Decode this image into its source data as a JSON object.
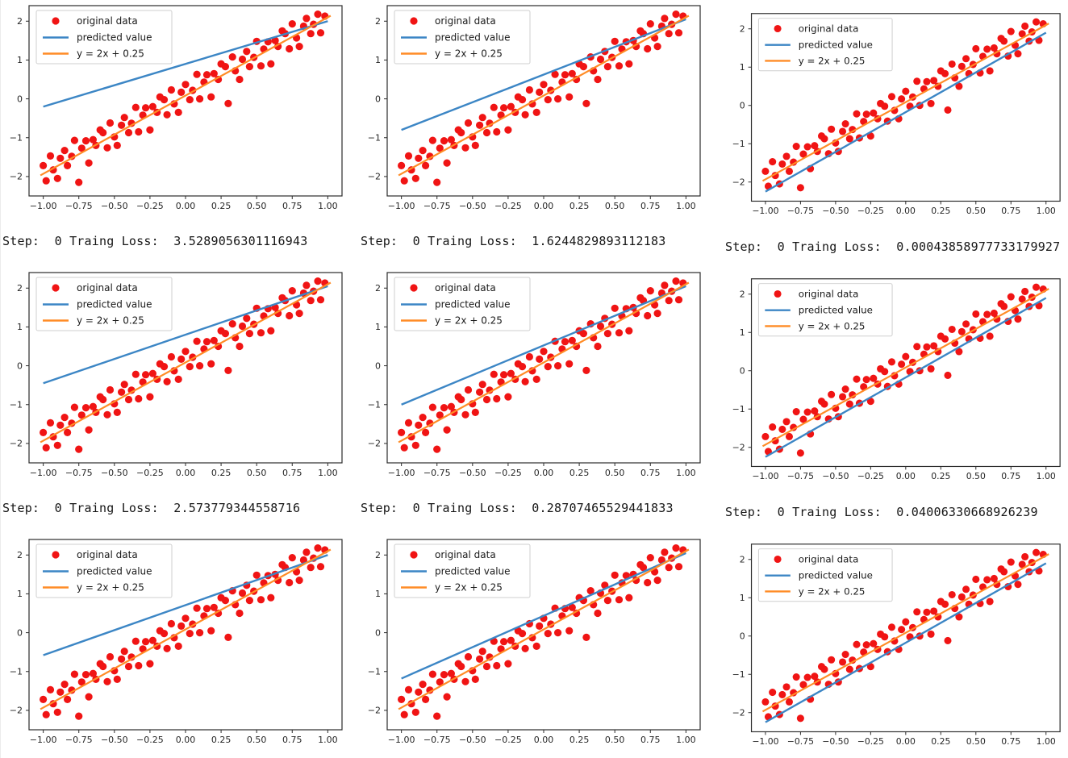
{
  "page": {
    "background": "#ffffff"
  },
  "caption_format": "Step:  {step} Traing Loss:  {loss}",
  "chart_data": {
    "type": "scatter",
    "grid": "3x3 subplots, identical data, different predicted lines",
    "xlim": [
      -1.1,
      1.1
    ],
    "ylim": [
      -2.5,
      2.4
    ],
    "x_ticks": [
      -1.0,
      -0.75,
      -0.5,
      -0.25,
      0.0,
      0.25,
      0.5,
      0.75,
      1.0
    ],
    "x_tick_labels": [
      "−1.00",
      "−0.75",
      "−0.50",
      "−0.25",
      "0.00",
      "0.25",
      "0.50",
      "0.75",
      "1.00"
    ],
    "y_ticks": [
      2,
      1,
      0,
      -1,
      -2
    ],
    "y_tick_labels": [
      "2",
      "1",
      "0",
      "−1",
      "−2"
    ],
    "legend": [
      {
        "label": "original data",
        "marker": "dot",
        "color": "#f01414"
      },
      {
        "label": "predicted value",
        "marker": "line",
        "color": "#3c86c5"
      },
      {
        "label": "y = 2x + 0.25",
        "marker": "line",
        "color": "#ff8c26"
      }
    ],
    "colors": {
      "scatter": "#f01414",
      "predicted": "#3c86c5",
      "true_line": "#ff8c26",
      "spine": "#2b2b2b",
      "tick_text": "#262626"
    },
    "true_line": {
      "slope": 2,
      "intercept": 0.25,
      "draw": [
        [
          -1.02,
          -1.97
        ],
        [
          1.02,
          2.14
        ]
      ]
    },
    "scatter": [
      [
        -1.0,
        -1.72
      ],
      [
        -0.98,
        -2.11
      ],
      [
        -0.95,
        -1.47
      ],
      [
        -0.93,
        -1.83
      ],
      [
        -0.9,
        -2.05
      ],
      [
        -0.88,
        -1.53
      ],
      [
        -0.85,
        -1.33
      ],
      [
        -0.83,
        -1.72
      ],
      [
        -0.8,
        -1.48
      ],
      [
        -0.78,
        -1.07
      ],
      [
        -0.75,
        -2.15
      ],
      [
        -0.73,
        -1.27
      ],
      [
        -0.7,
        -1.08
      ],
      [
        -0.68,
        -1.65
      ],
      [
        -0.65,
        -1.05
      ],
      [
        -0.63,
        -1.2
      ],
      [
        -0.6,
        -0.8
      ],
      [
        -0.58,
        -0.87
      ],
      [
        -0.55,
        -1.26
      ],
      [
        -0.53,
        -0.62
      ],
      [
        -0.5,
        -0.98
      ],
      [
        -0.48,
        -1.2
      ],
      [
        -0.45,
        -0.68
      ],
      [
        -0.43,
        -0.48
      ],
      [
        -0.4,
        -0.87
      ],
      [
        -0.38,
        -0.63
      ],
      [
        -0.35,
        -0.22
      ],
      [
        -0.33,
        -0.85
      ],
      [
        -0.3,
        -0.42
      ],
      [
        -0.28,
        -0.23
      ],
      [
        -0.25,
        -0.8
      ],
      [
        -0.23,
        -0.2
      ],
      [
        -0.2,
        -0.35
      ],
      [
        -0.18,
        0.05
      ],
      [
        -0.15,
        -0.02
      ],
      [
        -0.13,
        -0.41
      ],
      [
        -0.1,
        0.23
      ],
      [
        -0.08,
        -0.13
      ],
      [
        -0.05,
        -0.35
      ],
      [
        -0.03,
        0.17
      ],
      [
        0.0,
        0.37
      ],
      [
        0.03,
        -0.02
      ],
      [
        0.05,
        0.22
      ],
      [
        0.08,
        0.63
      ],
      [
        0.1,
        0.0
      ],
      [
        0.13,
        0.43
      ],
      [
        0.15,
        0.62
      ],
      [
        0.18,
        0.05
      ],
      [
        0.2,
        0.65
      ],
      [
        0.23,
        0.5
      ],
      [
        0.25,
        0.9
      ],
      [
        0.28,
        0.83
      ],
      [
        0.3,
        -0.12
      ],
      [
        0.33,
        1.08
      ],
      [
        0.35,
        0.72
      ],
      [
        0.38,
        0.5
      ],
      [
        0.4,
        1.02
      ],
      [
        0.43,
        1.22
      ],
      [
        0.45,
        0.83
      ],
      [
        0.48,
        1.07
      ],
      [
        0.5,
        1.48
      ],
      [
        0.53,
        0.85
      ],
      [
        0.55,
        1.28
      ],
      [
        0.58,
        1.47
      ],
      [
        0.6,
        0.9
      ],
      [
        0.63,
        1.5
      ],
      [
        0.65,
        1.35
      ],
      [
        0.68,
        1.75
      ],
      [
        0.7,
        1.68
      ],
      [
        0.73,
        1.29
      ],
      [
        0.75,
        1.93
      ],
      [
        0.78,
        1.57
      ],
      [
        0.8,
        1.35
      ],
      [
        0.83,
        1.87
      ],
      [
        0.85,
        2.07
      ],
      [
        0.88,
        1.68
      ],
      [
        0.9,
        1.92
      ],
      [
        0.93,
        2.18
      ],
      [
        0.95,
        1.7
      ],
      [
        0.98,
        2.13
      ]
    ],
    "plots": [
      {
        "predicted_line": [
          [
            -1.0,
            -0.2
          ],
          [
            1.0,
            2.0
          ]
        ],
        "caption": {
          "step": "0",
          "loss": "3.5289056301116943"
        }
      },
      {
        "predicted_line": [
          [
            -1.0,
            -0.8
          ],
          [
            1.0,
            2.05
          ]
        ],
        "caption": {
          "step": "0",
          "loss": "1.6244829893112183"
        }
      },
      {
        "predicted_line": [
          [
            -1.0,
            -2.25
          ],
          [
            1.0,
            1.9
          ]
        ],
        "caption": {
          "step": "0",
          "loss": "0.00043858977733179927"
        }
      },
      {
        "predicted_line": [
          [
            -1.0,
            -0.45
          ],
          [
            1.0,
            2.05
          ]
        ],
        "caption": {
          "step": "0",
          "loss": "2.573779344558716"
        }
      },
      {
        "predicted_line": [
          [
            -1.0,
            -1.0
          ],
          [
            1.0,
            2.05
          ]
        ],
        "caption": {
          "step": "0",
          "loss": "0.28707465529441833"
        }
      },
      {
        "predicted_line": [
          [
            -1.0,
            -2.25
          ],
          [
            1.0,
            1.9
          ]
        ],
        "caption": {
          "step": "0",
          "loss": "0.04006330668926239"
        }
      },
      {
        "predicted_line": [
          [
            -1.0,
            -0.58
          ],
          [
            1.0,
            2.0
          ]
        ],
        "caption": null
      },
      {
        "predicted_line": [
          [
            -1.0,
            -1.18
          ],
          [
            1.0,
            2.05
          ]
        ],
        "caption": null
      },
      {
        "predicted_line": [
          [
            -1.0,
            -2.25
          ],
          [
            1.0,
            1.9
          ]
        ],
        "caption": null
      }
    ]
  }
}
